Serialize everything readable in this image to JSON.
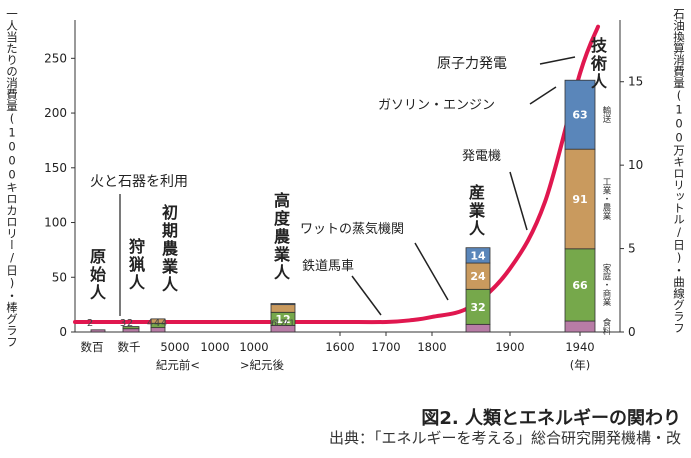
{
  "chart_data": {
    "type": "bar",
    "ylabel_left": "一人当たりの消費量(1000キロカロリー/日)・棒グラフ",
    "ylabel_right": "石油換算消費量(100万キロリットル/日)・曲線グラフ",
    "yleft_ticks": [
      0,
      50,
      100,
      150,
      200,
      250
    ],
    "yleft_lim": [
      0,
      285
    ],
    "yright_ticks": [
      0,
      5,
      10,
      15
    ],
    "yright_lim": [
      0,
      18.7
    ],
    "x_tick_labels": [
      "数百",
      "数千",
      "5000",
      "1000",
      "1000",
      "1600",
      "1700",
      "1800",
      "1900",
      "1940"
    ],
    "x_ticks_sub": [
      "紀元前<",
      ">紀元後",
      "(年)"
    ],
    "stages": [
      {
        "label": "原始人",
        "segments": [
          {
            "category": "食料",
            "value": 2,
            "label": "2"
          }
        ]
      },
      {
        "label": "狩猟人",
        "segments": [
          {
            "category": "食料",
            "value": 3,
            "label": "3"
          },
          {
            "category": "家庭・商業",
            "value": 2,
            "label": "2"
          }
        ]
      },
      {
        "label": "初期農業人",
        "segments": [
          {
            "category": "食料",
            "value": 4,
            "label": "4"
          },
          {
            "category": "家庭・商業",
            "value": 4,
            "label": "4"
          },
          {
            "category": "工業・農業",
            "value": 4,
            "label": "4"
          }
        ]
      },
      {
        "label": "高度農業人",
        "segments": [
          {
            "category": "食料",
            "value": 6,
            "label": "6"
          },
          {
            "category": "家庭・商業",
            "value": 12,
            "label": "12"
          },
          {
            "category": "工業・農業",
            "value": 7,
            "label": "7"
          },
          {
            "category": "輸送",
            "value": 1,
            "label": "1"
          }
        ]
      },
      {
        "label": "産業人",
        "segments": [
          {
            "category": "食料",
            "value": 7,
            "label": "7"
          },
          {
            "category": "家庭・商業",
            "value": 32,
            "label": "32"
          },
          {
            "category": "工業・農業",
            "value": 24,
            "label": "24"
          },
          {
            "category": "輸送",
            "value": 14,
            "label": "14"
          }
        ]
      },
      {
        "label": "技術人",
        "segments": [
          {
            "category": "食料",
            "value": 10,
            "label": "10"
          },
          {
            "category": "家庭・商業",
            "value": 66,
            "label": "66"
          },
          {
            "category": "工業・農業",
            "value": 91,
            "label": "91"
          },
          {
            "category": "輸送",
            "value": 63,
            "label": "63"
          }
        ]
      }
    ],
    "legend": [
      "輸送",
      "工業・農業",
      "家庭・商業",
      "食料"
    ],
    "curve": {
      "unit": "100万キロリットル/日",
      "x": [
        "紀元前",
        "1000",
        "1600",
        "1700",
        "1750",
        "1800",
        "1850",
        "1900",
        "1920",
        "1940",
        "1945"
      ],
      "y": [
        0.6,
        0.6,
        0.6,
        0.6,
        0.7,
        0.9,
        1.5,
        3.8,
        7.8,
        15.5,
        18.3
      ]
    },
    "annotations": [
      "火と石器を利用",
      "鉄道馬車",
      "ワットの蒸気機関",
      "発電機",
      "ガソリン・エンジン",
      "原子力発電"
    ],
    "colors": {
      "curve": "#e0174f",
      "食料": "#b87ca6",
      "家庭・商業": "#76a84b",
      "工業・農業": "#c99a5e",
      "輸送": "#5a86ba"
    }
  },
  "figure_title": "図2. 人類とエネルギーの関わり",
  "figure_source": "出典：「エネルギーを考える」総合研究開発機構・改"
}
